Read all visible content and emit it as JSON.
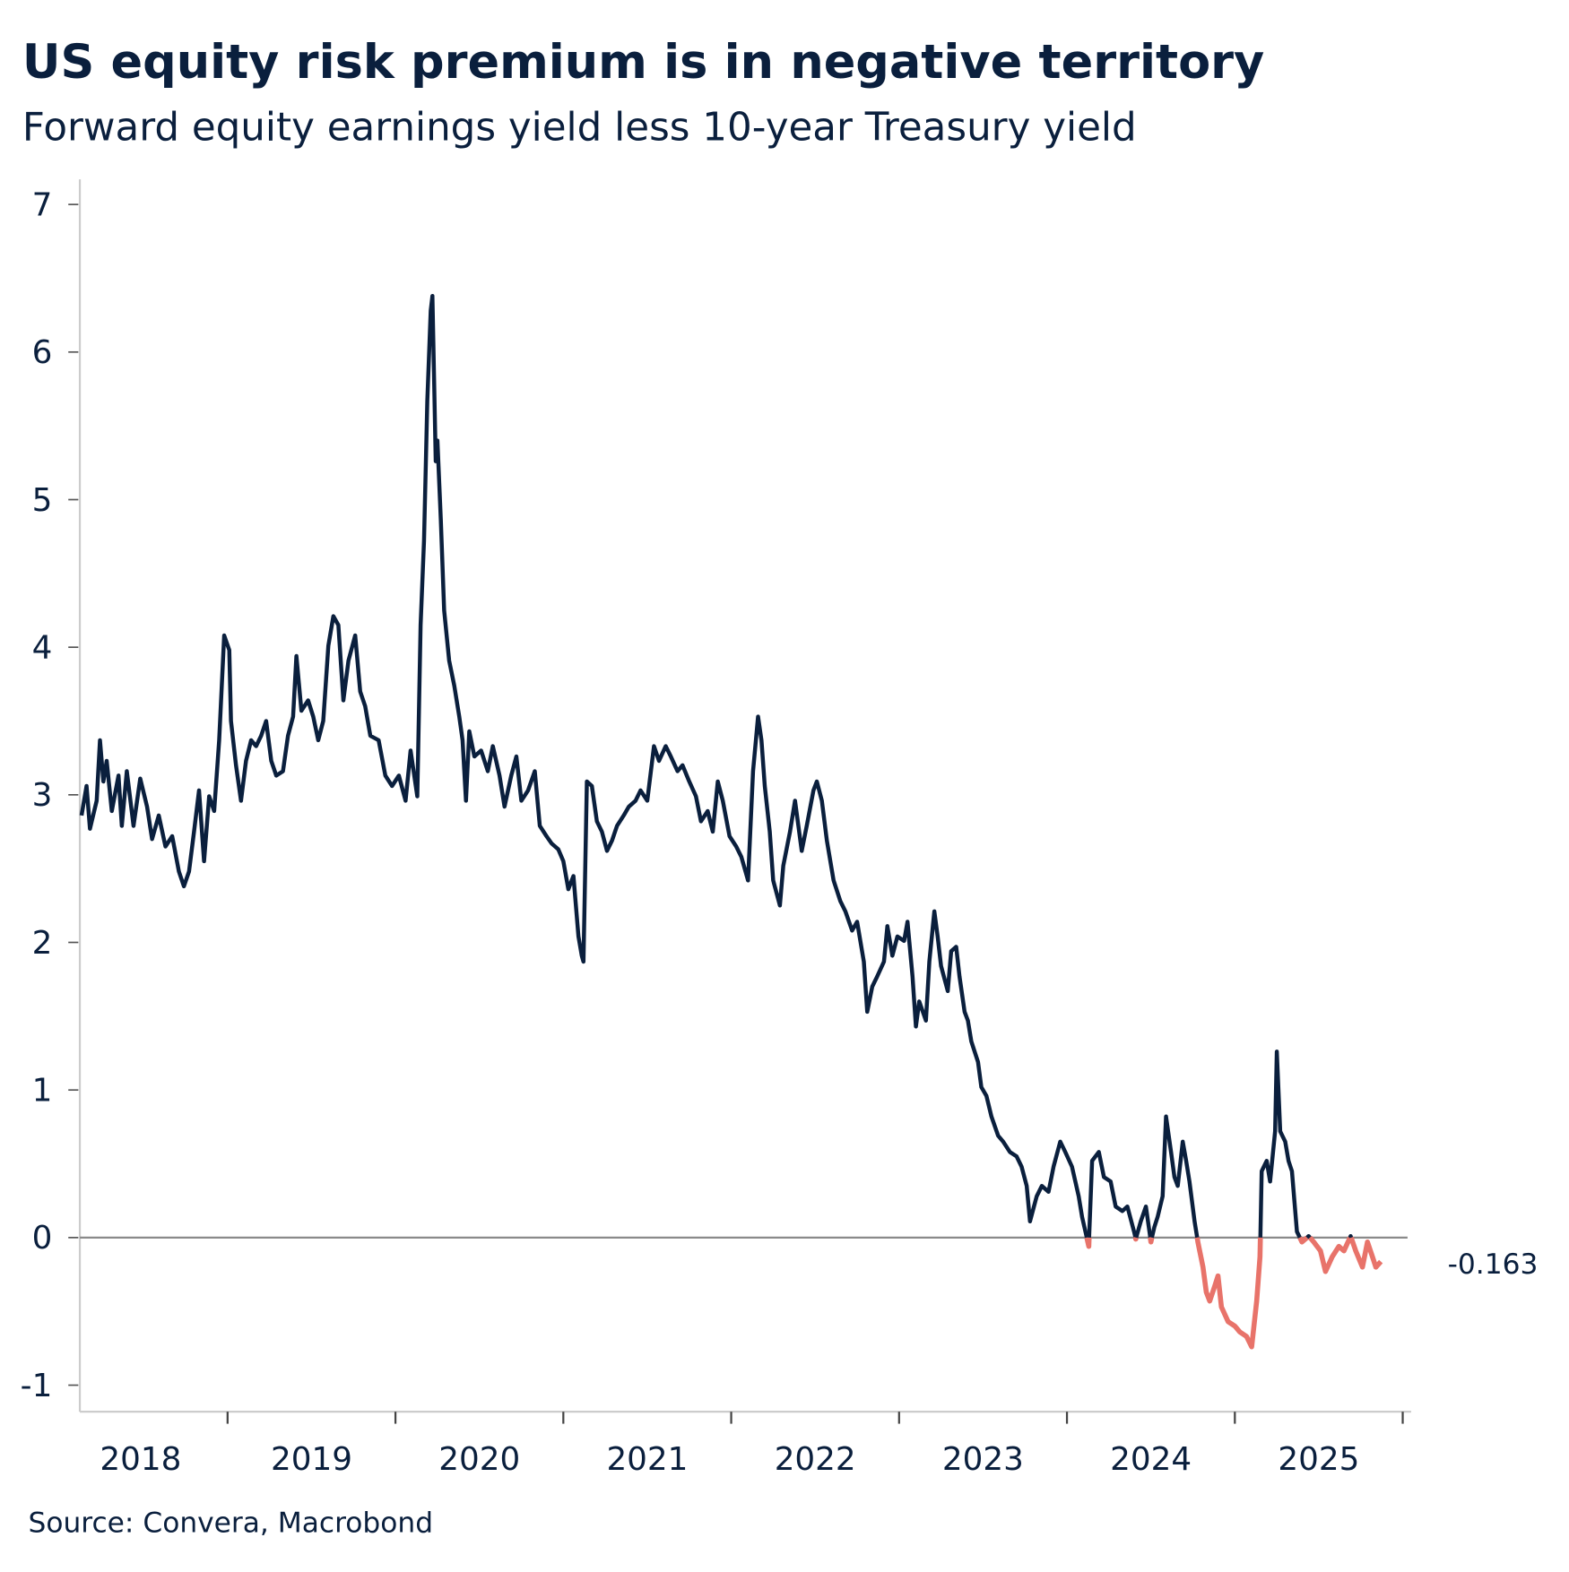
{
  "chart_data": {
    "type": "line",
    "title": "US equity risk premium is in negative territory",
    "subtitle": "Forward equity earnings yield less 10-year Treasury yield",
    "source": "Source: Convera, Macrobond",
    "xlabel": "",
    "ylabel": "",
    "x_tick_labels": [
      "2018",
      "2019",
      "2020",
      "2021",
      "2022",
      "2023",
      "2024",
      "2025"
    ],
    "y_ticks": [
      7,
      6,
      5,
      4,
      3,
      2,
      1,
      0,
      -1
    ],
    "y_tick_labels": [
      "7",
      "6",
      "5",
      "4",
      "3",
      "2",
      "1",
      "0",
      "-1"
    ],
    "xlim": [
      2018.12,
      2026.05
    ],
    "ylim": [
      -1.18,
      7.17
    ],
    "grid": false,
    "reference_line": 0,
    "last_value_label": "-0.163",
    "colors": {
      "positive": "#0a1f3d",
      "negative": "#e8736a",
      "zero_line": "#8a8a8a",
      "axis": "#cccccc"
    },
    "x_unit": "decimal year",
    "series": [
      {
        "points": [
          [
            2018.13,
            2.86
          ],
          [
            2018.16,
            3.06
          ],
          [
            2018.18,
            2.77
          ],
          [
            2018.22,
            2.96
          ],
          [
            2018.24,
            3.37
          ],
          [
            2018.26,
            3.09
          ],
          [
            2018.28,
            3.23
          ],
          [
            2018.31,
            2.89
          ],
          [
            2018.35,
            3.13
          ],
          [
            2018.37,
            2.79
          ],
          [
            2018.4,
            3.16
          ],
          [
            2018.44,
            2.79
          ],
          [
            2018.48,
            3.11
          ],
          [
            2018.52,
            2.92
          ],
          [
            2018.55,
            2.7
          ],
          [
            2018.59,
            2.86
          ],
          [
            2018.63,
            2.65
          ],
          [
            2018.67,
            2.72
          ],
          [
            2018.71,
            2.48
          ],
          [
            2018.74,
            2.38
          ],
          [
            2018.77,
            2.48
          ],
          [
            2018.8,
            2.75
          ],
          [
            2018.83,
            3.03
          ],
          [
            2018.86,
            2.55
          ],
          [
            2018.89,
            2.99
          ],
          [
            2018.92,
            2.89
          ],
          [
            2018.95,
            3.37
          ],
          [
            2018.98,
            4.08
          ],
          [
            2019.01,
            3.98
          ],
          [
            2019.02,
            3.5
          ],
          [
            2019.05,
            3.2
          ],
          [
            2019.08,
            2.96
          ],
          [
            2019.11,
            3.23
          ],
          [
            2019.14,
            3.37
          ],
          [
            2019.17,
            3.33
          ],
          [
            2019.2,
            3.4
          ],
          [
            2019.23,
            3.5
          ],
          [
            2019.26,
            3.23
          ],
          [
            2019.29,
            3.13
          ],
          [
            2019.33,
            3.16
          ],
          [
            2019.36,
            3.4
          ],
          [
            2019.39,
            3.53
          ],
          [
            2019.41,
            3.94
          ],
          [
            2019.44,
            3.57
          ],
          [
            2019.48,
            3.64
          ],
          [
            2019.51,
            3.53
          ],
          [
            2019.54,
            3.37
          ],
          [
            2019.57,
            3.5
          ],
          [
            2019.6,
            4.01
          ],
          [
            2019.63,
            4.21
          ],
          [
            2019.66,
            4.15
          ],
          [
            2019.69,
            3.64
          ],
          [
            2019.72,
            3.91
          ],
          [
            2019.76,
            4.08
          ],
          [
            2019.79,
            3.7
          ],
          [
            2019.82,
            3.6
          ],
          [
            2019.85,
            3.4
          ],
          [
            2019.9,
            3.37
          ],
          [
            2019.94,
            3.13
          ],
          [
            2019.98,
            3.06
          ],
          [
            2020.02,
            3.13
          ],
          [
            2020.06,
            2.96
          ],
          [
            2020.09,
            3.3
          ],
          [
            2020.13,
            2.99
          ],
          [
            2020.15,
            4.15
          ],
          [
            2020.17,
            4.72
          ],
          [
            2020.19,
            5.67
          ],
          [
            2020.21,
            6.28
          ],
          [
            2020.22,
            6.38
          ],
          [
            2020.24,
            5.26
          ],
          [
            2020.25,
            5.4
          ],
          [
            2020.27,
            4.86
          ],
          [
            2020.29,
            4.25
          ],
          [
            2020.32,
            3.91
          ],
          [
            2020.35,
            3.74
          ],
          [
            2020.38,
            3.53
          ],
          [
            2020.4,
            3.37
          ],
          [
            2020.42,
            2.96
          ],
          [
            2020.44,
            3.43
          ],
          [
            2020.47,
            3.26
          ],
          [
            2020.51,
            3.3
          ],
          [
            2020.55,
            3.16
          ],
          [
            2020.58,
            3.33
          ],
          [
            2020.62,
            3.13
          ],
          [
            2020.65,
            2.92
          ],
          [
            2020.69,
            3.13
          ],
          [
            2020.72,
            3.26
          ],
          [
            2020.75,
            2.96
          ],
          [
            2020.79,
            3.03
          ],
          [
            2020.83,
            3.16
          ],
          [
            2020.86,
            2.79
          ],
          [
            2020.9,
            2.72
          ],
          [
            2020.93,
            2.67
          ],
          [
            2020.97,
            2.63
          ],
          [
            2021.0,
            2.55
          ],
          [
            2021.03,
            2.36
          ],
          [
            2021.06,
            2.45
          ],
          [
            2021.09,
            2.04
          ],
          [
            2021.11,
            1.91
          ],
          [
            2021.12,
            1.87
          ],
          [
            2021.14,
            3.09
          ],
          [
            2021.17,
            3.06
          ],
          [
            2021.2,
            2.82
          ],
          [
            2021.23,
            2.75
          ],
          [
            2021.26,
            2.62
          ],
          [
            2021.29,
            2.69
          ],
          [
            2021.32,
            2.79
          ],
          [
            2021.36,
            2.86
          ],
          [
            2021.39,
            2.92
          ],
          [
            2021.43,
            2.96
          ],
          [
            2021.46,
            3.03
          ],
          [
            2021.5,
            2.96
          ],
          [
            2021.54,
            3.33
          ],
          [
            2021.57,
            3.23
          ],
          [
            2021.61,
            3.33
          ],
          [
            2021.64,
            3.26
          ],
          [
            2021.68,
            3.16
          ],
          [
            2021.71,
            3.2
          ],
          [
            2021.75,
            3.09
          ],
          [
            2021.79,
            2.99
          ],
          [
            2021.82,
            2.82
          ],
          [
            2021.86,
            2.89
          ],
          [
            2021.89,
            2.75
          ],
          [
            2021.92,
            3.09
          ],
          [
            2021.95,
            2.96
          ],
          [
            2021.99,
            2.72
          ],
          [
            2022.03,
            2.65
          ],
          [
            2022.06,
            2.58
          ],
          [
            2022.1,
            2.42
          ],
          [
            2022.13,
            3.16
          ],
          [
            2022.16,
            3.53
          ],
          [
            2022.18,
            3.37
          ],
          [
            2022.2,
            3.06
          ],
          [
            2022.23,
            2.75
          ],
          [
            2022.25,
            2.42
          ],
          [
            2022.29,
            2.25
          ],
          [
            2022.31,
            2.52
          ],
          [
            2022.35,
            2.75
          ],
          [
            2022.38,
            2.96
          ],
          [
            2022.42,
            2.62
          ],
          [
            2022.45,
            2.79
          ],
          [
            2022.49,
            3.03
          ],
          [
            2022.51,
            3.09
          ],
          [
            2022.54,
            2.96
          ],
          [
            2022.57,
            2.69
          ],
          [
            2022.61,
            2.42
          ],
          [
            2022.65,
            2.28
          ],
          [
            2022.68,
            2.21
          ],
          [
            2022.72,
            2.08
          ],
          [
            2022.75,
            2.14
          ],
          [
            2022.79,
            1.87
          ],
          [
            2022.81,
            1.53
          ],
          [
            2022.84,
            1.7
          ],
          [
            2022.87,
            1.77
          ],
          [
            2022.91,
            1.87
          ],
          [
            2022.93,
            2.11
          ],
          [
            2022.96,
            1.91
          ],
          [
            2022.99,
            2.04
          ],
          [
            2023.03,
            2.01
          ],
          [
            2023.05,
            2.14
          ],
          [
            2023.08,
            1.77
          ],
          [
            2023.1,
            1.43
          ],
          [
            2023.12,
            1.6
          ],
          [
            2023.16,
            1.47
          ],
          [
            2023.18,
            1.87
          ],
          [
            2023.21,
            2.21
          ],
          [
            2023.23,
            2.04
          ],
          [
            2023.25,
            1.84
          ],
          [
            2023.29,
            1.67
          ],
          [
            2023.31,
            1.94
          ],
          [
            2023.34,
            1.97
          ],
          [
            2023.36,
            1.77
          ],
          [
            2023.39,
            1.53
          ],
          [
            2023.41,
            1.47
          ],
          [
            2023.43,
            1.33
          ],
          [
            2023.47,
            1.19
          ],
          [
            2023.49,
            1.02
          ],
          [
            2023.52,
            0.96
          ],
          [
            2023.55,
            0.82
          ],
          [
            2023.59,
            0.69
          ],
          [
            2023.62,
            0.65
          ],
          [
            2023.66,
            0.58
          ],
          [
            2023.7,
            0.55
          ],
          [
            2023.73,
            0.48
          ],
          [
            2023.76,
            0.35
          ],
          [
            2023.78,
            0.11
          ],
          [
            2023.82,
            0.28
          ],
          [
            2023.85,
            0.35
          ],
          [
            2023.89,
            0.31
          ],
          [
            2023.92,
            0.48
          ],
          [
            2023.96,
            0.65
          ],
          [
            2023.99,
            0.58
          ],
          [
            2024.03,
            0.48
          ],
          [
            2024.07,
            0.28
          ],
          [
            2024.09,
            0.14
          ],
          [
            2024.13,
            -0.06
          ],
          [
            2024.15,
            0.52
          ],
          [
            2024.19,
            0.58
          ],
          [
            2024.22,
            0.41
          ],
          [
            2024.26,
            0.38
          ],
          [
            2024.29,
            0.21
          ],
          [
            2024.33,
            0.18
          ],
          [
            2024.36,
            0.21
          ],
          [
            2024.4,
            0.04
          ],
          [
            2024.41,
            -0.01
          ],
          [
            2024.44,
            0.11
          ],
          [
            2024.47,
            0.21
          ],
          [
            2024.5,
            -0.03
          ],
          [
            2024.52,
            0.07
          ],
          [
            2024.54,
            0.14
          ],
          [
            2024.57,
            0.28
          ],
          [
            2024.59,
            0.82
          ],
          [
            2024.62,
            0.58
          ],
          [
            2024.64,
            0.41
          ],
          [
            2024.66,
            0.35
          ],
          [
            2024.69,
            0.65
          ],
          [
            2024.71,
            0.52
          ],
          [
            2024.73,
            0.38
          ],
          [
            2024.76,
            0.11
          ],
          [
            2024.78,
            -0.03
          ],
          [
            2024.81,
            -0.2
          ],
          [
            2024.83,
            -0.37
          ],
          [
            2024.85,
            -0.43
          ],
          [
            2024.88,
            -0.33
          ],
          [
            2024.9,
            -0.26
          ],
          [
            2024.92,
            -0.47
          ],
          [
            2024.96,
            -0.57
          ],
          [
            2025.0,
            -0.6
          ],
          [
            2025.03,
            -0.64
          ],
          [
            2025.07,
            -0.67
          ],
          [
            2025.1,
            -0.74
          ],
          [
            2025.13,
            -0.43
          ],
          [
            2025.15,
            -0.13
          ],
          [
            2025.16,
            0.45
          ],
          [
            2025.19,
            0.52
          ],
          [
            2025.21,
            0.38
          ],
          [
            2025.24,
            0.72
          ],
          [
            2025.25,
            1.26
          ],
          [
            2025.27,
            0.72
          ],
          [
            2025.3,
            0.65
          ],
          [
            2025.32,
            0.52
          ],
          [
            2025.34,
            0.45
          ],
          [
            2025.37,
            0.04
          ],
          [
            2025.4,
            -0.03
          ],
          [
            2025.44,
            0.01
          ],
          [
            2025.47,
            -0.03
          ],
          [
            2025.51,
            -0.09
          ],
          [
            2025.54,
            -0.23
          ],
          [
            2025.58,
            -0.13
          ],
          [
            2025.62,
            -0.06
          ],
          [
            2025.65,
            -0.09
          ],
          [
            2025.69,
            0.01
          ],
          [
            2025.72,
            -0.09
          ],
          [
            2025.76,
            -0.2
          ],
          [
            2025.79,
            -0.03
          ],
          [
            2025.82,
            -0.13
          ],
          [
            2025.84,
            -0.2
          ],
          [
            2025.87,
            -0.163
          ]
        ]
      }
    ]
  }
}
